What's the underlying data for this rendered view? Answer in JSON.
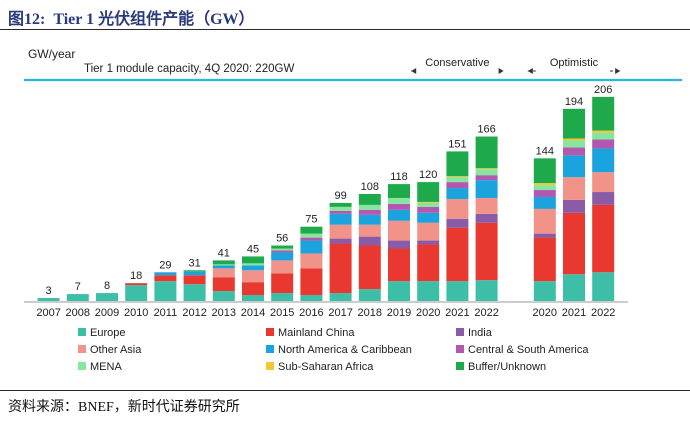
{
  "figure": {
    "label": "图12:",
    "title": "Tier 1 光伏组件产能（GW）"
  },
  "source": "资料来源：BNEF，新时代证券研究所",
  "chart_data": {
    "type": "bar",
    "stacked": true,
    "title": "Tier 1 module capacity, 4Q 2020: 220GW",
    "ylabel": "GW/year",
    "xlabel": "",
    "ylim": [
      0,
      215
    ],
    "categories": [
      "2007",
      "2008",
      "2009",
      "2010",
      "2011",
      "2012",
      "2013",
      "2014",
      "2015",
      "2016",
      "2017",
      "2018",
      "2019",
      "2020",
      "2021",
      "2022",
      "2020",
      "2021",
      "2022"
    ],
    "groups": [
      {
        "name": "",
        "start": 0,
        "end": 15
      },
      {
        "name": "Conservative",
        "start": 13,
        "end": 15
      },
      {
        "name": "Optimistic",
        "start": 16,
        "end": 18
      }
    ],
    "totals": [
      3,
      7,
      8,
      18,
      29,
      31,
      41,
      45,
      56,
      75,
      99,
      108,
      118,
      120,
      151,
      166,
      144,
      194,
      206
    ],
    "series": [
      {
        "name": "Europe",
        "color": "#3dbfa7",
        "values": [
          3,
          7,
          8,
          16,
          20,
          17,
          10,
          6,
          8,
          6,
          8,
          12,
          20,
          20,
          20,
          21,
          20,
          27,
          29
        ]
      },
      {
        "name": "Mainland China",
        "color": "#e8382f",
        "values": [
          0,
          0,
          0,
          2,
          6,
          9,
          14,
          13,
          20,
          27,
          50,
          44,
          33,
          37,
          54,
          58,
          44,
          62,
          68
        ]
      },
      {
        "name": "India",
        "color": "#8a5ca8",
        "values": [
          0,
          0,
          0,
          0,
          0,
          0,
          0,
          0,
          0,
          0,
          5,
          9,
          8,
          4,
          9,
          9,
          4,
          13,
          13
        ]
      },
      {
        "name": "Other Asia",
        "color": "#f2938a",
        "values": [
          0,
          0,
          0,
          0,
          0,
          0,
          9,
          12,
          13,
          15,
          14,
          12,
          20,
          18,
          20,
          16,
          25,
          23,
          20
        ]
      },
      {
        "name": "North America & Caribbean",
        "color": "#1aa3dc",
        "values": [
          0,
          0,
          0,
          0,
          3,
          4,
          3,
          5,
          8,
          13,
          11,
          10,
          11,
          10,
          11,
          18,
          12,
          22,
          24
        ]
      },
      {
        "name": "Central & South America",
        "color": "#b258b0",
        "values": [
          0,
          0,
          0,
          0,
          0,
          0,
          0,
          0,
          2,
          3,
          3,
          5,
          6,
          6,
          6,
          5,
          7,
          8,
          9
        ]
      },
      {
        "name": "MENA",
        "color": "#86e6a0",
        "values": [
          0,
          0,
          0,
          0,
          0,
          0,
          1,
          2,
          2,
          4,
          4,
          5,
          6,
          4,
          5,
          6,
          5,
          7,
          7
        ]
      },
      {
        "name": "Sub-Saharan Africa",
        "color": "#f2c833",
        "values": [
          0,
          0,
          0,
          0,
          0,
          0,
          0,
          0,
          0,
          0,
          0,
          0,
          0,
          1,
          1,
          1,
          2,
          2,
          2
        ]
      },
      {
        "name": "Buffer/Unknown",
        "color": "#1eaa4a",
        "values": [
          0,
          0,
          0,
          0,
          0,
          1,
          4,
          7,
          3,
          7,
          4,
          11,
          14,
          20,
          25,
          32,
          25,
          30,
          34
        ]
      }
    ],
    "legend_position": "bottom",
    "legend_order": [
      "Europe",
      "Mainland China",
      "India",
      "Other Asia",
      "North America & Caribbean",
      "Central & South America",
      "MENA",
      "Sub-Saharan Africa",
      "Buffer/Unknown"
    ],
    "grid": false
  }
}
